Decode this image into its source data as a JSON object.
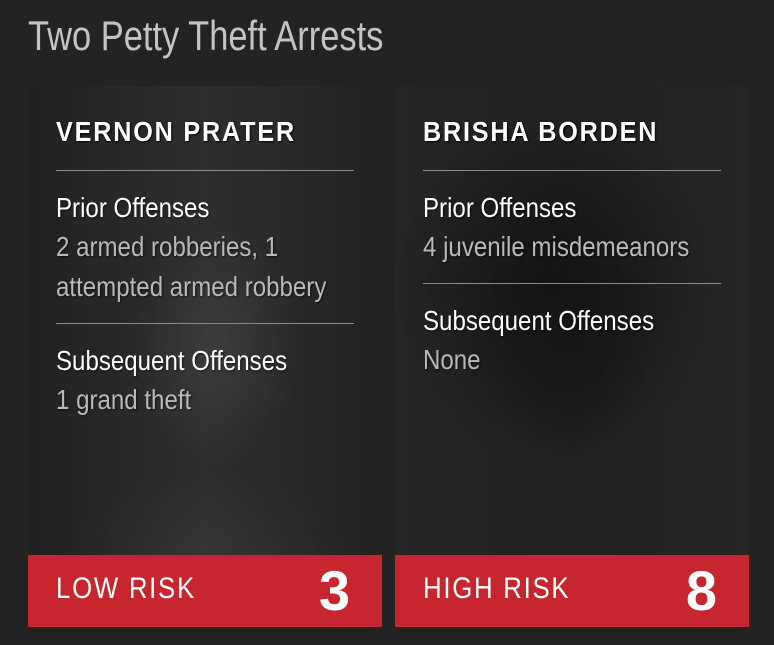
{
  "title": "Two Petty Theft Arrests",
  "people": [
    {
      "name": "VERNON PRATER",
      "prior_heading": "Prior Offenses",
      "prior_value": "2 armed robberies, 1 attempted armed robbery",
      "subsequent_heading": "Subsequent Offenses",
      "subsequent_value": "1 grand theft",
      "risk_label": "LOW RISK",
      "risk_score": "3"
    },
    {
      "name": "BRISHA BORDEN",
      "prior_heading": "Prior Offenses",
      "prior_value": "4 juvenile misdemeanors",
      "subsequent_heading": "Subsequent Offenses",
      "subsequent_value": "None",
      "risk_label": "HIGH RISK",
      "risk_score": "8"
    }
  ],
  "colors": {
    "background": "#232323",
    "risk_bar": "#c8262f",
    "title_text": "#c4c4c4",
    "value_text": "#b9b9b9"
  }
}
